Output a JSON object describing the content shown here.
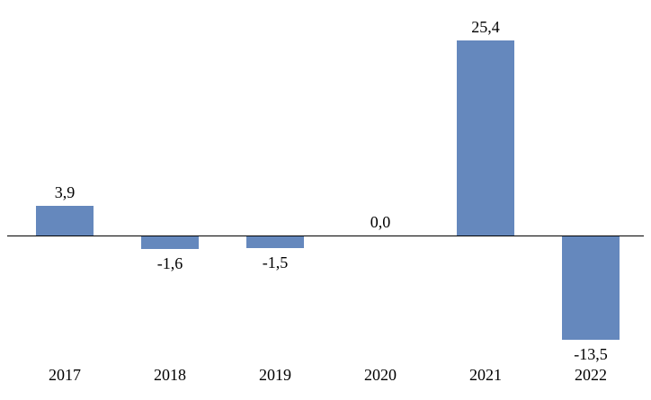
{
  "chart_data": {
    "type": "bar",
    "title": "",
    "xlabel": "",
    "ylabel": "",
    "categories": [
      "2017",
      "2018",
      "2019",
      "2020",
      "2021",
      "2022"
    ],
    "values": [
      3.9,
      -1.6,
      -1.5,
      0.0,
      25.4,
      -13.5
    ],
    "value_labels": [
      "3,9",
      "-1,6",
      "-1,5",
      "0,0",
      "25,4",
      "-13,5"
    ],
    "decimal_separator": ",",
    "ylim": [
      -16,
      28
    ],
    "grid": false,
    "legend": false,
    "bar_color": "#6588BD",
    "axis_color": "#000000",
    "background_color": "#ffffff"
  }
}
